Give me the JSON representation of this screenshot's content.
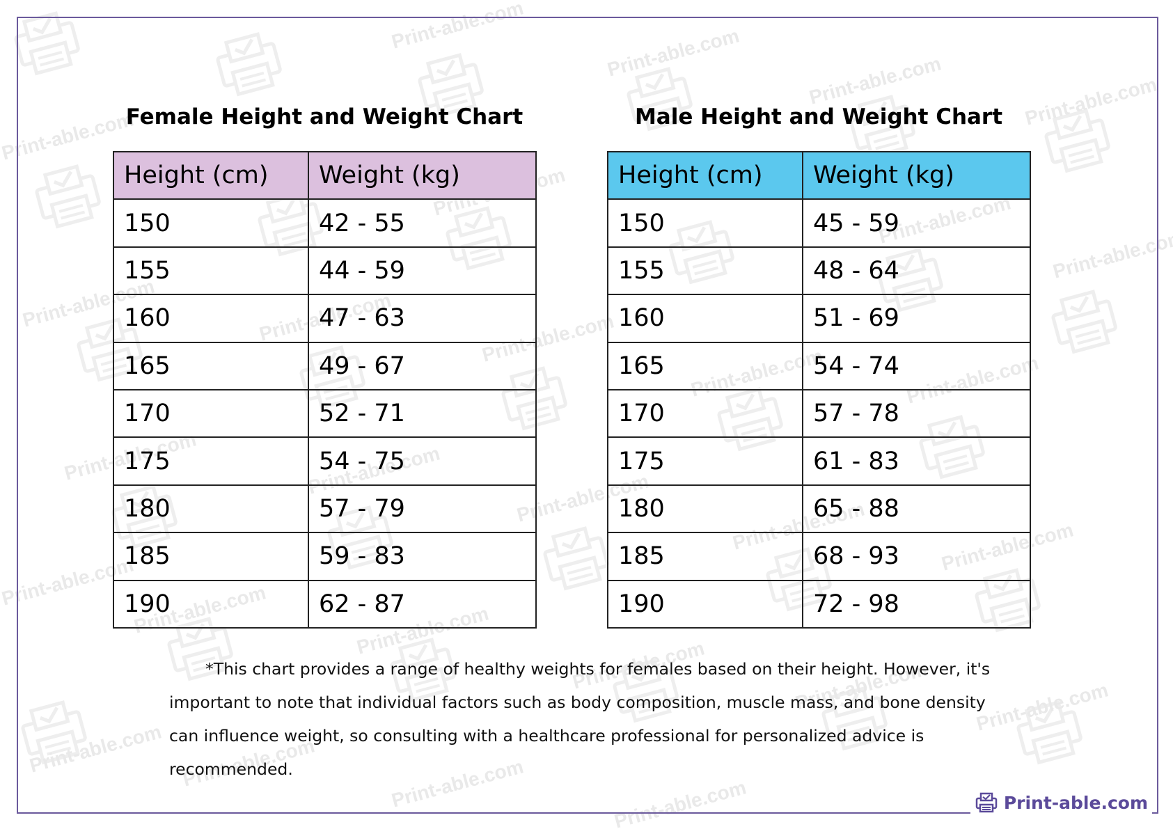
{
  "female": {
    "title": "Female Height and Weight Chart",
    "headers": [
      "Height (cm)",
      "Weight (kg)"
    ],
    "rows": [
      [
        "150",
        "42 - 55"
      ],
      [
        "155",
        "44 - 59"
      ],
      [
        "160",
        "47 - 63"
      ],
      [
        "165",
        "49 - 67"
      ],
      [
        "170",
        "52 - 71"
      ],
      [
        "175",
        "54 - 75"
      ],
      [
        "180",
        "57 - 79"
      ],
      [
        "185",
        "59 - 83"
      ],
      [
        "190",
        "62 - 87"
      ]
    ]
  },
  "male": {
    "title": "Male Height and Weight Chart",
    "headers": [
      "Height (cm)",
      "Weight (kg)"
    ],
    "rows": [
      [
        "150",
        "45 - 59"
      ],
      [
        "155",
        "48 - 64"
      ],
      [
        "160",
        "51 - 69"
      ],
      [
        "165",
        "54 - 74"
      ],
      [
        "170",
        "57 - 78"
      ],
      [
        "175",
        "61 - 83"
      ],
      [
        "180",
        "65 - 88"
      ],
      [
        "185",
        "68 - 93"
      ],
      [
        "190",
        "72 - 98"
      ]
    ]
  },
  "note": "*This chart provides a range of healthy weights for females based on their height. However, it's important to note that individual factors such as body composition, muscle mass, and bone density can influence weight, so consulting with a healthcare professional for personalized advice is recommended.",
  "brand": {
    "label": "Print-able.com",
    "icon": "printer-check-icon"
  },
  "watermark": "Print-able.com",
  "colors": {
    "female_header": "#dcc0de",
    "male_header": "#5bc8ee",
    "frame": "#6b5a9c",
    "brand": "#5b4a9a"
  }
}
